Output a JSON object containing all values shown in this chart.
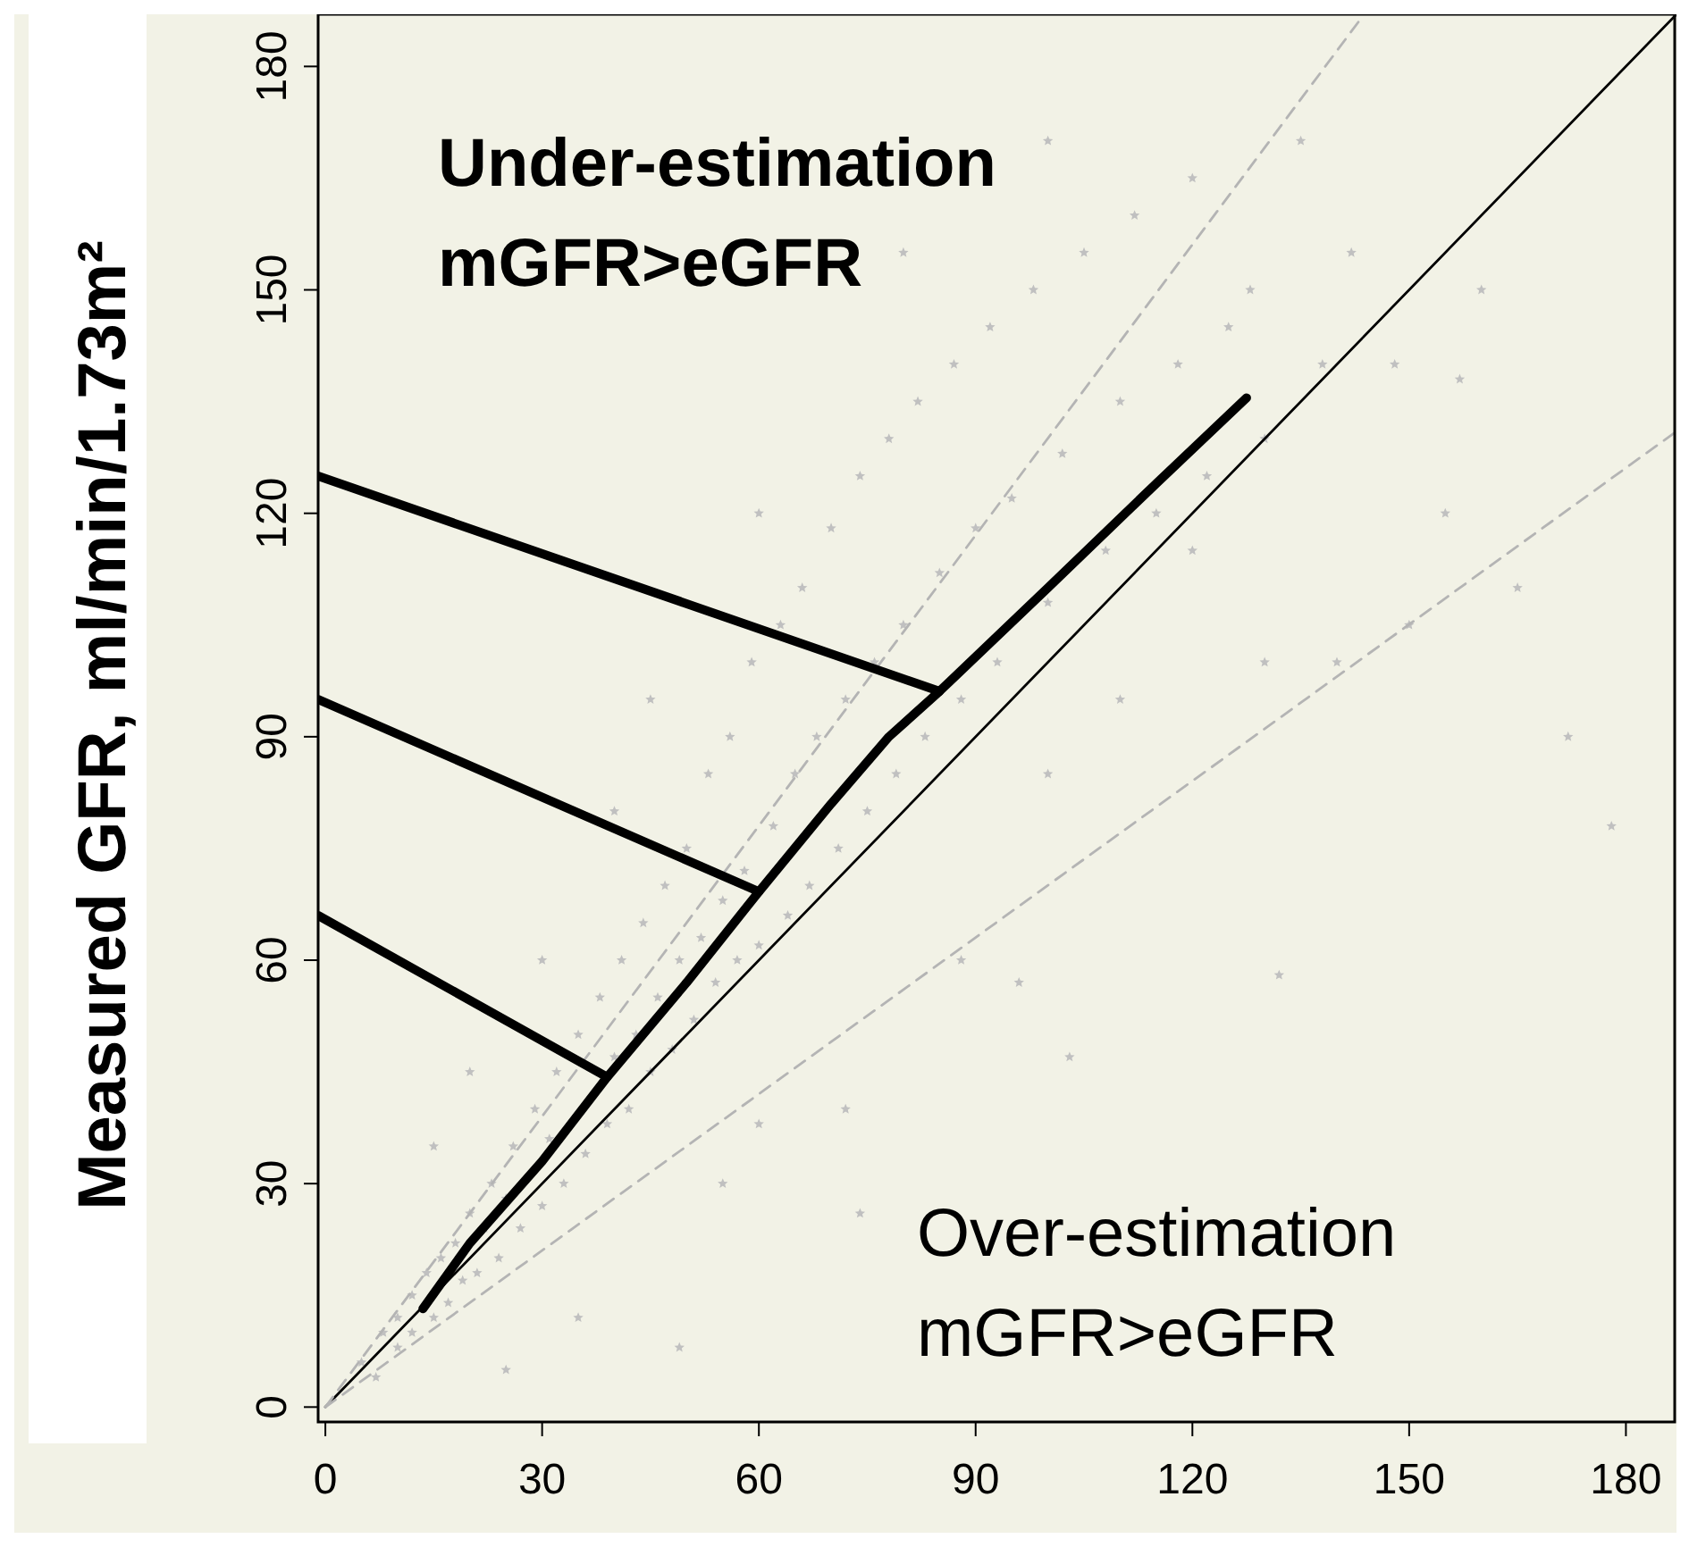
{
  "chart_data": {
    "type": "scatter",
    "ylabel": "Measured GFR, ml/min/1.73m²",
    "xlim": [
      -1,
      187
    ],
    "ylim": [
      -2,
      187
    ],
    "xticks": [
      0,
      30,
      60,
      90,
      120,
      150,
      180
    ],
    "yticks": [
      0,
      30,
      60,
      90,
      120,
      150,
      180
    ],
    "grid": false,
    "annotations": [
      "Under-estimation\nmGFR>eGFR",
      "Over-estimation\nmGFR>eGFR"
    ],
    "series": [
      {
        "marker": "star",
        "color": "#c0c0c0",
        "x": [
          5,
          7,
          8,
          10,
          10,
          12,
          12,
          14,
          15,
          16,
          17,
          18,
          19,
          20,
          21,
          22,
          23,
          24,
          25,
          26,
          27,
          29,
          30,
          31,
          32,
          33,
          35,
          36,
          38,
          39,
          40,
          41,
          42,
          43,
          44,
          45,
          46,
          47,
          48,
          49,
          50,
          51,
          52,
          53,
          54,
          55,
          56,
          57,
          58,
          59,
          60,
          62,
          63,
          64,
          65,
          66,
          67,
          68,
          70,
          71,
          72,
          74,
          75,
          76,
          78,
          79,
          80,
          82,
          83,
          85,
          87,
          88,
          90,
          92,
          93,
          95,
          98,
          100,
          102,
          105,
          108,
          110,
          112,
          115,
          118,
          120,
          122,
          125,
          128,
          130,
          135,
          138,
          142,
          148,
          155,
          160,
          165,
          172,
          178,
          20,
          30,
          40,
          25,
          49,
          60,
          72,
          96,
          103,
          100,
          74,
          132,
          15,
          35,
          55,
          88,
          110,
          140,
          150,
          60,
          45,
          80,
          100,
          120,
          157,
          130
        ],
        "values": [
          6,
          4,
          10,
          12,
          8,
          15,
          10,
          18,
          12,
          20,
          14,
          22,
          17,
          26,
          18,
          24,
          30,
          20,
          28,
          35,
          24,
          40,
          27,
          36,
          45,
          30,
          50,
          34,
          55,
          38,
          47,
          60,
          40,
          50,
          65,
          45,
          55,
          70,
          48,
          60,
          75,
          52,
          63,
          85,
          57,
          68,
          90,
          60,
          72,
          100,
          62,
          78,
          105,
          66,
          85,
          110,
          70,
          90,
          118,
          75,
          95,
          125,
          80,
          100,
          130,
          85,
          105,
          135,
          90,
          112,
          140,
          95,
          118,
          145,
          100,
          122,
          150,
          108,
          128,
          155,
          115,
          135,
          160,
          120,
          140,
          165,
          125,
          145,
          150,
          130,
          170,
          140,
          155,
          140,
          120,
          150,
          110,
          90,
          78,
          45,
          60,
          80,
          5,
          8,
          38,
          40,
          57,
          47,
          85,
          26,
          58,
          35,
          12,
          30,
          60,
          95,
          100,
          105,
          120,
          95,
          155,
          170,
          115,
          138,
          100
        ]
      },
      {
        "type": "line",
        "color": "#000000",
        "line_style": "solid",
        "x": [
          0,
          187
        ],
        "values": [
          0,
          187
        ]
      },
      {
        "type": "line",
        "color": "#b4b4b4",
        "line_style": "dashed",
        "x": [
          0,
          143
        ],
        "values": [
          0,
          186
        ]
      },
      {
        "type": "line",
        "color": "#b4b4b4",
        "line_style": "dashed",
        "x": [
          0,
          187
        ],
        "values": [
          0,
          131
        ]
      },
      {
        "type": "line",
        "color": "#000000",
        "line_style": "solid",
        "x": [
          13.5,
          20,
          30,
          39,
          50,
          60,
          70,
          78,
          85,
          100,
          115,
          127.5
        ],
        "values": [
          13.2,
          22,
          33,
          44.3,
          57,
          69.2,
          81,
          90,
          96.1,
          110,
          124,
          135.5
        ]
      },
      {
        "type": "line",
        "color": "#000000",
        "line_style": "solid",
        "x": [
          -1,
          85
        ],
        "values": [
          125,
          96.1
        ]
      },
      {
        "type": "line",
        "color": "#000000",
        "line_style": "solid",
        "x": [
          -1,
          60
        ],
        "values": [
          95,
          69.2
        ]
      },
      {
        "type": "line",
        "color": "#000000",
        "line_style": "solid",
        "x": [
          -1,
          39
        ],
        "values": [
          66,
          44.3
        ]
      }
    ]
  }
}
